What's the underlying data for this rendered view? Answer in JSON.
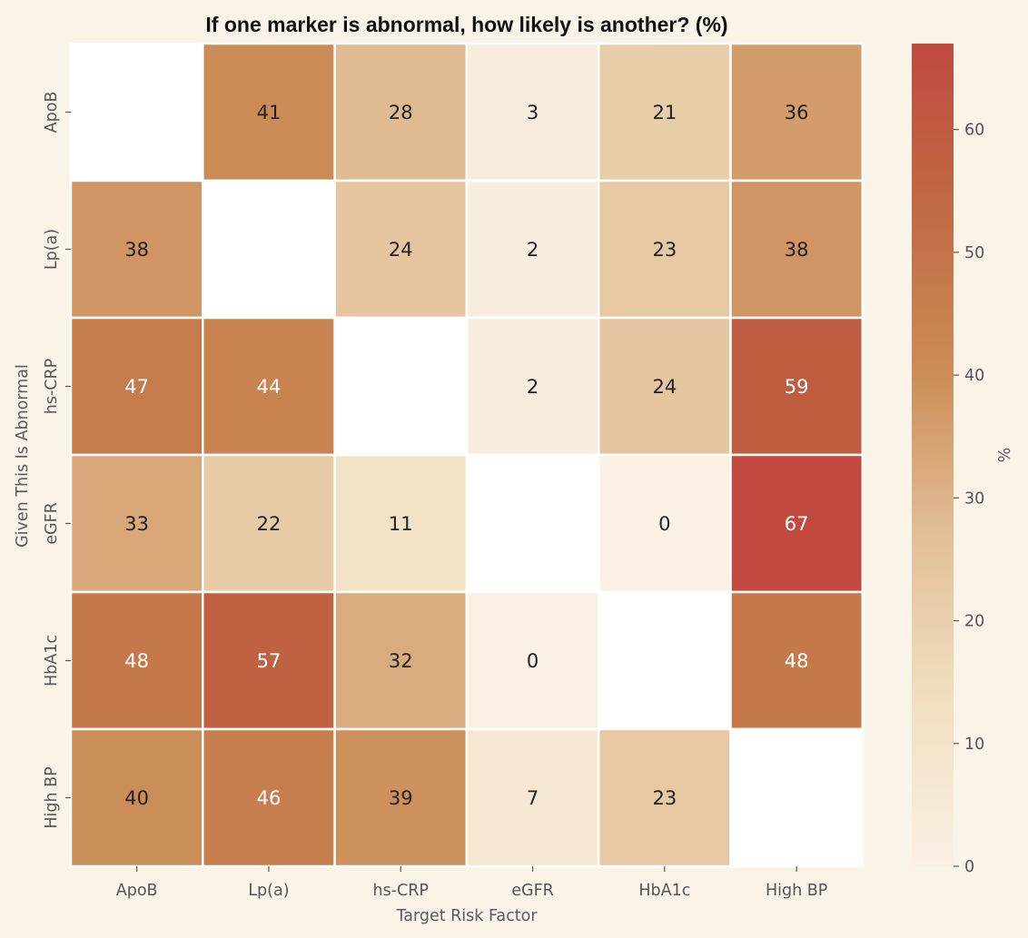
{
  "chart_data": {
    "type": "heatmap",
    "title": "If one marker is abnormal, how likely is another? (%)",
    "xlabel": "Target Risk Factor",
    "ylabel": "Given This Is Abnormal",
    "x_categories": [
      "ApoB",
      "Lp(a)",
      "hs-CRP",
      "eGFR",
      "HbA1c",
      "High BP"
    ],
    "y_categories": [
      "ApoB",
      "Lp(a)",
      "hs-CRP",
      "eGFR",
      "HbA1c",
      "High BP"
    ],
    "values": [
      [
        null,
        41,
        28,
        3,
        21,
        36
      ],
      [
        38,
        null,
        24,
        2,
        23,
        38
      ],
      [
        47,
        44,
        null,
        2,
        24,
        59
      ],
      [
        33,
        22,
        11,
        null,
        0,
        67
      ],
      [
        48,
        57,
        32,
        0,
        null,
        48
      ],
      [
        40,
        46,
        39,
        7,
        23,
        null
      ]
    ],
    "colorbar": {
      "label": "%",
      "range": [
        0,
        67
      ],
      "ticks": [
        0,
        10,
        20,
        30,
        40,
        50,
        60
      ],
      "colors": [
        "#faf0e4",
        "#f0dfc0",
        "#e2bf98",
        "#cc8d57",
        "#c06a42",
        "#c04a3f"
      ]
    },
    "colors": {
      "background": "#faf3e8",
      "missing_cell": "#ffffff",
      "grid_line": "#ffffff",
      "text_dark": "#222222",
      "text_light": "#ffffff"
    }
  }
}
